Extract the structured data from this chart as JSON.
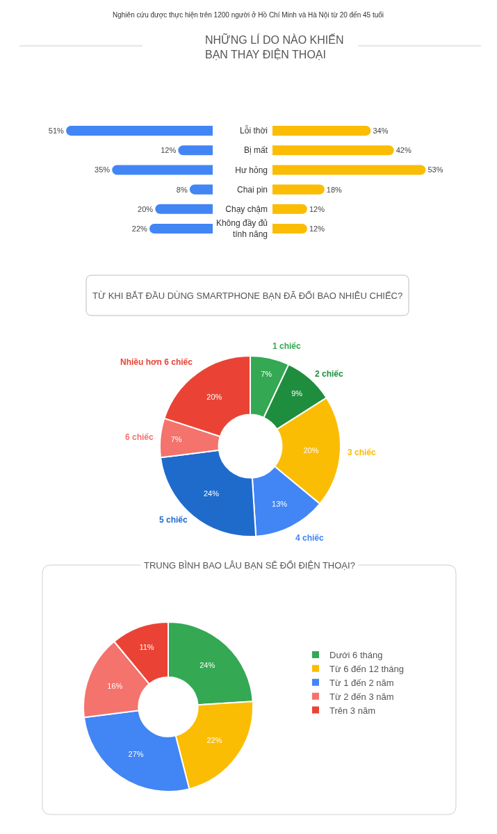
{
  "chart_data": [
    {
      "type": "bar",
      "orientation": "horizontal",
      "categories": [
        "Lỗi thời",
        "Bị mất",
        "Hư hỏng",
        "Chai pin",
        "Chạy chậm",
        "Không đầy đủ tính năng"
      ],
      "values": [
        51,
        12,
        35,
        8,
        20,
        22
      ],
      "color": "#4285f4",
      "value_labels": [
        "51%",
        "12%",
        "35%",
        "8%",
        "20%",
        "22%"
      ],
      "tick_labels": false
    },
    {
      "type": "bar",
      "orientation": "horizontal",
      "title": "NHỮNG LÍ DO NÀO KHIẾN\nBẠN THAY ĐIỆN THOẠI",
      "annotations": [
        "Nghiên cứu được thực hiện trên 1200 người ở Hồ Chí Minh và Hà Nội từ 20 đến 45 tuổi"
      ],
      "categories": [
        "Lỗi thời",
        "Bị mất",
        "Hư hỏng",
        "Chai pin",
        "Chạy chậm",
        "Không đầy đủ tính năng"
      ],
      "values": [
        34,
        42,
        53,
        18,
        12,
        12
      ],
      "color": "#fbbc04",
      "value_labels": [
        "34%",
        "42%",
        "53%",
        "18%",
        "12%",
        "12%"
      ],
      "tick_labels": "y"
    },
    {
      "type": "donut",
      "title": "TỪ KHI BẮT ĐẦU DÙNG SMARTPHONE BẠN ĐÃ ĐỔI BAO NHIÊU CHIẾC?",
      "categories": [
        "1 chiếc",
        "2 chiếc",
        "3 chiếc",
        "4 chiếc",
        "5 chiếc",
        "6 chiếc",
        "Nhiều hơn 6 chiếc"
      ],
      "values": [
        7,
        9,
        20,
        13,
        24,
        7,
        20
      ],
      "colors": [
        "#34a853",
        "#1e8e3e",
        "#fbbc04",
        "#4285f4",
        "#1f6bcc",
        "#f4736c",
        "#ea4335"
      ],
      "value_labels": [
        "7%",
        "9%",
        "20%",
        "13%",
        "24%",
        "7%",
        "20%"
      ]
    },
    {
      "type": "donut",
      "title": "TRUNG BÌNH BAO LÂU BẠN SẼ ĐỔI ĐIỆN THOẠI?",
      "categories": [
        "Dưới 6 tháng",
        "Từ 6 đến 12 tháng",
        "Từ 1 đến 2 năm",
        "Từ 2 đến 3 năm",
        "Trên 3 năm"
      ],
      "values": [
        24,
        22,
        27,
        16,
        11
      ],
      "colors": [
        "#34a853",
        "#fbbc04",
        "#4285f4",
        "#f4736c",
        "#ea4335"
      ],
      "value_labels": [
        "24%",
        "22%",
        "27%",
        "16%",
        "11%"
      ],
      "legend": "right"
    }
  ]
}
